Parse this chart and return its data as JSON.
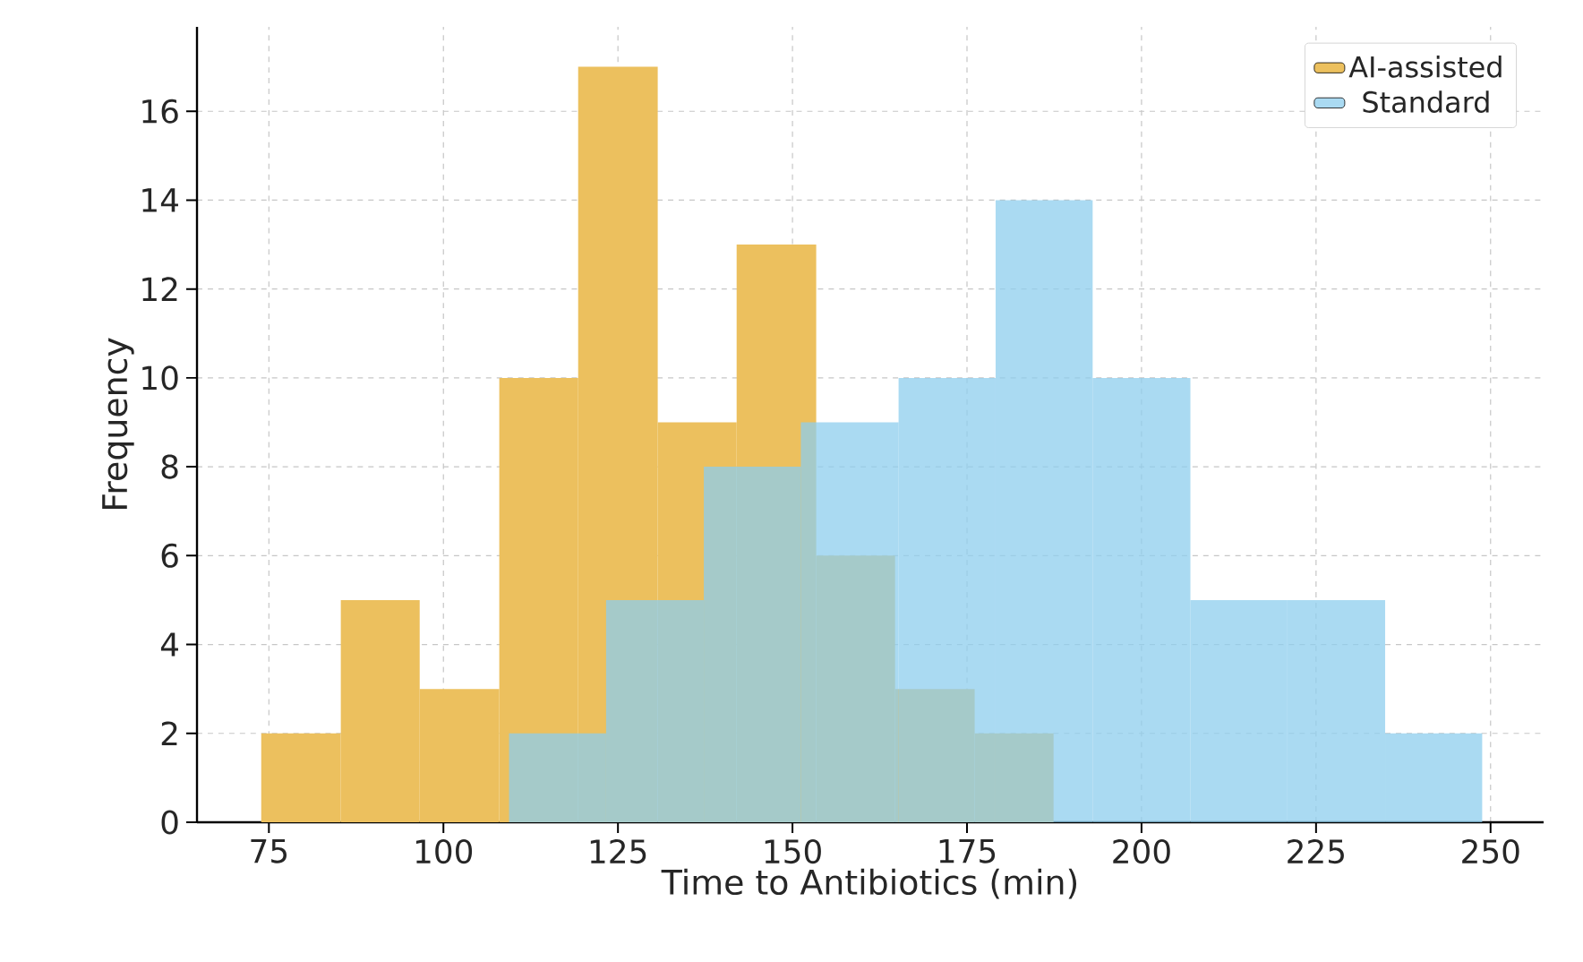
{
  "chart_data": {
    "type": "histogram",
    "xlabel": "Time to Antibiotics (min)",
    "ylabel": "Frequency",
    "xlim": [
      64.7,
      257.6
    ],
    "ylim": [
      0,
      17.9
    ],
    "xticks": [
      75,
      100,
      125,
      150,
      175,
      200,
      225,
      250
    ],
    "yticks": [
      0,
      2,
      4,
      6,
      8,
      10,
      12,
      14,
      16
    ],
    "grid": true,
    "legend": "top right",
    "bins": [
      73.9,
      85.3,
      96.6,
      108.0,
      119.3,
      130.7,
      142.0,
      153.4,
      164.7,
      176.1,
      187.4
    ],
    "series": [
      {
        "name": "AI-assisted",
        "color": "#ecc05e",
        "values": [
          2,
          5,
          3,
          10,
          17,
          9,
          13,
          6,
          3,
          2
        ]
      },
      {
        "name": "Standard",
        "color": "#8ecdee",
        "bins": [
          109.4,
          123.3,
          137.3,
          151.2,
          165.2,
          179.1,
          193.0,
          207.0,
          220.9,
          234.9,
          248.8
        ],
        "values": [
          2,
          5,
          8,
          9,
          10,
          14,
          10,
          5,
          5,
          2
        ]
      }
    ]
  }
}
